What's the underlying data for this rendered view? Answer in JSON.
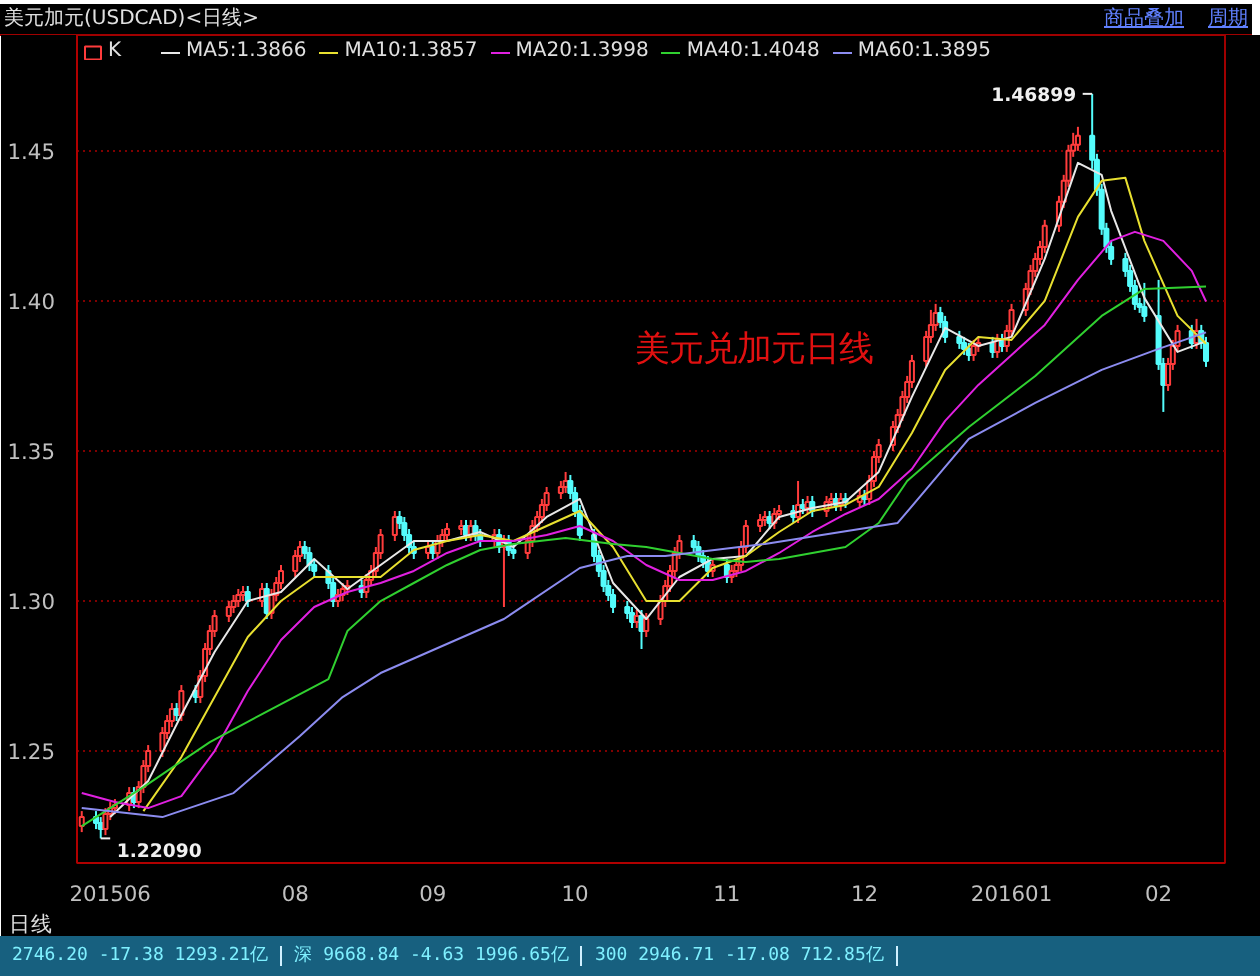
{
  "chart_data": {
    "type": "candlestick",
    "title": "美元加元(USDCAD)<日线>",
    "xlim": [
      "2015-06-18",
      "2016-02-15"
    ],
    "ylim": [
      1.2127,
      1.4886
    ],
    "xticks": [
      {
        "value": "2015-06-25",
        "label": "201506"
      },
      {
        "value": "2015-08-03",
        "label": "08"
      },
      {
        "value": "2015-09-01",
        "label": "09"
      },
      {
        "value": "2015-10-01",
        "label": "10"
      },
      {
        "value": "2015-11-02",
        "label": "11"
      },
      {
        "value": "2015-12-01",
        "label": "12"
      },
      {
        "value": "2016-01-01",
        "label": "201601"
      },
      {
        "value": "2016-02-01",
        "label": "02"
      }
    ],
    "yticks": [
      1.25,
      {
        "value": 1.3,
        "label": "1.30"
      },
      1.35,
      {
        "value": 1.4,
        "label": "1.40"
      },
      1.45
    ],
    "grid": "y",
    "legend": "top left",
    "annotations": [
      "美元兑加元日线",
      {
        "text": "1.46899",
        "x": "2016-01-18",
        "y": 1.46899
      },
      {
        "text": "1.22090",
        "x": "2015-06-23",
        "y": 1.2209
      },
      "商品叠加",
      "周期",
      "日线",
      "2746.20  -17.38  1293.21亿",
      "深  9668.84  -4.63  1996.65亿",
      "300  2946.71  -17.08  712.85亿"
    ],
    "series": [
      {
        "name": "K",
        "type": "candlestick",
        "x": [
          "2015-06-19",
          "2015-06-22",
          "2015-06-23",
          "2015-06-24",
          "2015-06-25",
          "2015-06-26",
          "2015-06-29",
          "2015-06-30",
          "2015-07-01",
          "2015-07-02",
          "2015-07-03",
          "2015-07-06",
          "2015-07-07",
          "2015-07-08",
          "2015-07-09",
          "2015-07-10",
          "2015-07-13",
          "2015-07-14",
          "2015-07-15",
          "2015-07-16",
          "2015-07-17",
          "2015-07-20",
          "2015-07-21",
          "2015-07-22",
          "2015-07-23",
          "2015-07-24",
          "2015-07-27",
          "2015-07-28",
          "2015-07-29",
          "2015-07-30",
          "2015-07-31",
          "2015-08-03",
          "2015-08-04",
          "2015-08-05",
          "2015-08-06",
          "2015-08-07",
          "2015-08-10",
          "2015-08-11",
          "2015-08-12",
          "2015-08-13",
          "2015-08-14",
          "2015-08-17",
          "2015-08-18",
          "2015-08-19",
          "2015-08-20",
          "2015-08-21",
          "2015-08-24",
          "2015-08-25",
          "2015-08-26",
          "2015-08-27",
          "2015-08-28",
          "2015-08-31",
          "2015-09-01",
          "2015-09-02",
          "2015-09-03",
          "2015-09-04",
          "2015-09-07",
          "2015-09-08",
          "2015-09-09",
          "2015-09-10",
          "2015-09-11",
          "2015-09-14",
          "2015-09-15",
          "2015-09-16",
          "2015-09-17",
          "2015-09-18",
          "2015-09-21",
          "2015-09-22",
          "2015-09-23",
          "2015-09-24",
          "2015-09-25",
          "2015-09-28",
          "2015-09-29",
          "2015-09-30",
          "2015-10-01",
          "2015-10-02",
          "2015-10-05",
          "2015-10-06",
          "2015-10-07",
          "2015-10-08",
          "2015-10-09",
          "2015-10-12",
          "2015-10-13",
          "2015-10-14",
          "2015-10-15",
          "2015-10-16",
          "2015-10-19",
          "2015-10-20",
          "2015-10-21",
          "2015-10-22",
          "2015-10-23",
          "2015-10-26",
          "2015-10-27",
          "2015-10-28",
          "2015-10-29",
          "2015-10-30",
          "2015-11-02",
          "2015-11-03",
          "2015-11-04",
          "2015-11-05",
          "2015-11-06",
          "2015-11-09",
          "2015-11-10",
          "2015-11-11",
          "2015-11-12",
          "2015-11-13",
          "2015-11-16",
          "2015-11-17",
          "2015-11-18",
          "2015-11-19",
          "2015-11-20",
          "2015-11-23",
          "2015-11-24",
          "2015-11-25",
          "2015-11-26",
          "2015-11-27",
          "2015-11-30",
          "2015-12-01",
          "2015-12-02",
          "2015-12-03",
          "2015-12-04",
          "2015-12-07",
          "2015-12-08",
          "2015-12-09",
          "2015-12-10",
          "2015-12-11",
          "2015-12-14",
          "2015-12-15",
          "2015-12-16",
          "2015-12-17",
          "2015-12-18",
          "2015-12-21",
          "2015-12-22",
          "2015-12-23",
          "2015-12-24",
          "2015-12-25",
          "2015-12-28",
          "2015-12-29",
          "2015-12-30",
          "2015-12-31",
          "2016-01-01",
          "2016-01-04",
          "2016-01-05",
          "2016-01-06",
          "2016-01-07",
          "2016-01-08",
          "2016-01-11",
          "2016-01-12",
          "2016-01-13",
          "2016-01-14",
          "2016-01-15",
          "2016-01-18",
          "2016-01-19",
          "2016-01-20",
          "2016-01-21",
          "2016-01-22",
          "2016-01-25",
          "2016-01-26",
          "2016-01-27",
          "2016-01-28",
          "2016-01-29",
          "2016-02-01",
          "2016-02-02",
          "2016-02-03",
          "2016-02-04",
          "2016-02-05",
          "2016-02-08",
          "2016-02-09",
          "2016-02-10",
          "2016-02-11"
        ],
        "ohlc": [
          [
            1.225,
            1.23,
            1.223,
            1.228
          ],
          [
            1.228,
            1.23,
            1.224,
            1.226
          ],
          [
            1.226,
            1.228,
            1.2209,
            1.224
          ],
          [
            1.224,
            1.231,
            1.222,
            1.229
          ],
          [
            1.229,
            1.233,
            1.227,
            1.231
          ],
          [
            1.231,
            1.234,
            1.229,
            1.232
          ],
          [
            1.232,
            1.238,
            1.23,
            1.236
          ],
          [
            1.236,
            1.238,
            1.231,
            1.233
          ],
          [
            1.233,
            1.24,
            1.231,
            1.238
          ],
          [
            1.238,
            1.247,
            1.236,
            1.245
          ],
          [
            1.245,
            1.252,
            1.243,
            1.25
          ],
          [
            1.25,
            1.258,
            1.248,
            1.256
          ],
          [
            1.256,
            1.262,
            1.254,
            1.26
          ],
          [
            1.26,
            1.266,
            1.258,
            1.264
          ],
          [
            1.264,
            1.266,
            1.26,
            1.262
          ],
          [
            1.262,
            1.272,
            1.26,
            1.27
          ],
          [
            1.27,
            1.272,
            1.266,
            1.268
          ],
          [
            1.268,
            1.277,
            1.266,
            1.275
          ],
          [
            1.275,
            1.286,
            1.273,
            1.284
          ],
          [
            1.284,
            1.292,
            1.282,
            1.29
          ],
          [
            1.29,
            1.297,
            1.288,
            1.295
          ],
          [
            1.295,
            1.3,
            1.293,
            1.298
          ],
          [
            1.298,
            1.302,
            1.296,
            1.3
          ],
          [
            1.3,
            1.304,
            1.298,
            1.302
          ],
          [
            1.302,
            1.305,
            1.3,
            1.303
          ],
          [
            1.303,
            1.305,
            1.298,
            1.3
          ],
          [
            1.3,
            1.306,
            1.298,
            1.304
          ],
          [
            1.304,
            1.306,
            1.294,
            1.296
          ],
          [
            1.296,
            1.304,
            1.294,
            1.302
          ],
          [
            1.302,
            1.308,
            1.3,
            1.306
          ],
          [
            1.306,
            1.312,
            1.304,
            1.31
          ],
          [
            1.31,
            1.317,
            1.308,
            1.315
          ],
          [
            1.315,
            1.32,
            1.313,
            1.318
          ],
          [
            1.318,
            1.32,
            1.314,
            1.316
          ],
          [
            1.316,
            1.318,
            1.31,
            1.312
          ],
          [
            1.312,
            1.314,
            1.308,
            1.31
          ],
          [
            1.31,
            1.312,
            1.304,
            1.306
          ],
          [
            1.306,
            1.308,
            1.298,
            1.3
          ],
          [
            1.3,
            1.304,
            1.298,
            1.302
          ],
          [
            1.302,
            1.306,
            1.3,
            1.304
          ],
          [
            1.304,
            1.307,
            1.302,
            1.305
          ],
          [
            1.305,
            1.307,
            1.301,
            1.303
          ],
          [
            1.303,
            1.309,
            1.301,
            1.307
          ],
          [
            1.307,
            1.312,
            1.305,
            1.31
          ],
          [
            1.31,
            1.318,
            1.308,
            1.316
          ],
          [
            1.316,
            1.324,
            1.314,
            1.322
          ],
          [
            1.322,
            1.33,
            1.32,
            1.328
          ],
          [
            1.328,
            1.33,
            1.324,
            1.326
          ],
          [
            1.326,
            1.328,
            1.32,
            1.322
          ],
          [
            1.322,
            1.324,
            1.316,
            1.318
          ],
          [
            1.318,
            1.32,
            1.314,
            1.316
          ],
          [
            1.316,
            1.32,
            1.314,
            1.318
          ],
          [
            1.318,
            1.32,
            1.314,
            1.316
          ],
          [
            1.316,
            1.322,
            1.314,
            1.32
          ],
          [
            1.32,
            1.324,
            1.318,
            1.322
          ],
          [
            1.322,
            1.326,
            1.32,
            1.324
          ],
          [
            1.324,
            1.327,
            1.322,
            1.325
          ],
          [
            1.325,
            1.327,
            1.32,
            1.322
          ],
          [
            1.322,
            1.327,
            1.32,
            1.325
          ],
          [
            1.325,
            1.327,
            1.32,
            1.322
          ],
          [
            1.322,
            1.324,
            1.318,
            1.32
          ],
          [
            1.32,
            1.324,
            1.318,
            1.322
          ],
          [
            1.322,
            1.324,
            1.316,
            1.318
          ],
          [
            1.318,
            1.322,
            1.298,
            1.32
          ],
          [
            1.32,
            1.322,
            1.315,
            1.317
          ],
          [
            1.317,
            1.319,
            1.314,
            1.316
          ],
          [
            1.316,
            1.322,
            1.314,
            1.32
          ],
          [
            1.32,
            1.327,
            1.318,
            1.325
          ],
          [
            1.325,
            1.33,
            1.323,
            1.328
          ],
          [
            1.328,
            1.334,
            1.326,
            1.332
          ],
          [
            1.332,
            1.338,
            1.33,
            1.336
          ],
          [
            1.336,
            1.34,
            1.334,
            1.338
          ],
          [
            1.338,
            1.343,
            1.336,
            1.34
          ],
          [
            1.34,
            1.342,
            1.334,
            1.336
          ],
          [
            1.336,
            1.338,
            1.328,
            1.33
          ],
          [
            1.33,
            1.332,
            1.32,
            1.322
          ],
          [
            1.322,
            1.324,
            1.313,
            1.315
          ],
          [
            1.315,
            1.317,
            1.308,
            1.31
          ],
          [
            1.31,
            1.312,
            1.303,
            1.305
          ],
          [
            1.305,
            1.307,
            1.3,
            1.302
          ],
          [
            1.302,
            1.304,
            1.296,
            1.298
          ],
          [
            1.298,
            1.3,
            1.294,
            1.296
          ],
          [
            1.296,
            1.298,
            1.291,
            1.293
          ],
          [
            1.293,
            1.297,
            1.291,
            1.295
          ],
          [
            1.295,
            1.297,
            1.284,
            1.29
          ],
          [
            1.29,
            1.296,
            1.288,
            1.294
          ],
          [
            1.294,
            1.302,
            1.292,
            1.3
          ],
          [
            1.3,
            1.307,
            1.298,
            1.305
          ],
          [
            1.305,
            1.312,
            1.303,
            1.31
          ],
          [
            1.31,
            1.318,
            1.308,
            1.316
          ],
          [
            1.316,
            1.322,
            1.314,
            1.32
          ],
          [
            1.32,
            1.322,
            1.316,
            1.318
          ],
          [
            1.318,
            1.32,
            1.313,
            1.315
          ],
          [
            1.315,
            1.317,
            1.311,
            1.313
          ],
          [
            1.313,
            1.315,
            1.308,
            1.31
          ],
          [
            1.31,
            1.314,
            1.308,
            1.312
          ],
          [
            1.312,
            1.314,
            1.306,
            1.308
          ],
          [
            1.308,
            1.312,
            1.306,
            1.31
          ],
          [
            1.31,
            1.314,
            1.308,
            1.312
          ],
          [
            1.312,
            1.32,
            1.31,
            1.318
          ],
          [
            1.318,
            1.327,
            1.316,
            1.325
          ],
          [
            1.325,
            1.329,
            1.323,
            1.327
          ],
          [
            1.327,
            1.33,
            1.325,
            1.328
          ],
          [
            1.328,
            1.33,
            1.324,
            1.326
          ],
          [
            1.326,
            1.331,
            1.324,
            1.329
          ],
          [
            1.329,
            1.332,
            1.327,
            1.33
          ],
          [
            1.33,
            1.332,
            1.326,
            1.328
          ],
          [
            1.328,
            1.34,
            1.326,
            1.332
          ],
          [
            1.332,
            1.334,
            1.329,
            1.331
          ],
          [
            1.331,
            1.335,
            1.329,
            1.333
          ],
          [
            1.333,
            1.335,
            1.328,
            1.33
          ],
          [
            1.33,
            1.335,
            1.328,
            1.333
          ],
          [
            1.333,
            1.336,
            1.331,
            1.334
          ],
          [
            1.334,
            1.336,
            1.33,
            1.332
          ],
          [
            1.332,
            1.336,
            1.33,
            1.334
          ],
          [
            1.334,
            1.336,
            1.331,
            1.333
          ],
          [
            1.333,
            1.337,
            1.331,
            1.335
          ],
          [
            1.335,
            1.337,
            1.332,
            1.334
          ],
          [
            1.334,
            1.342,
            1.332,
            1.34
          ],
          [
            1.34,
            1.35,
            1.338,
            1.348
          ],
          [
            1.348,
            1.354,
            1.346,
            1.352
          ],
          [
            1.352,
            1.36,
            1.35,
            1.358
          ],
          [
            1.358,
            1.364,
            1.356,
            1.362
          ],
          [
            1.362,
            1.37,
            1.36,
            1.368
          ],
          [
            1.368,
            1.375,
            1.366,
            1.373
          ],
          [
            1.373,
            1.382,
            1.371,
            1.38
          ],
          [
            1.38,
            1.39,
            1.378,
            1.388
          ],
          [
            1.388,
            1.397,
            1.386,
            1.392
          ],
          [
            1.392,
            1.399,
            1.39,
            1.396
          ],
          [
            1.396,
            1.398,
            1.391,
            1.393
          ],
          [
            1.393,
            1.395,
            1.386,
            1.388
          ],
          [
            1.388,
            1.39,
            1.384,
            1.386
          ],
          [
            1.386,
            1.388,
            1.382,
            1.384
          ],
          [
            1.384,
            1.386,
            1.38,
            1.382
          ],
          [
            1.382,
            1.387,
            1.38,
            1.385
          ],
          [
            1.385,
            1.388,
            1.383,
            1.386
          ],
          [
            1.386,
            1.388,
            1.381,
            1.383
          ],
          [
            1.383,
            1.389,
            1.381,
            1.387
          ],
          [
            1.387,
            1.389,
            1.383,
            1.385
          ],
          [
            1.385,
            1.392,
            1.383,
            1.39
          ],
          [
            1.39,
            1.399,
            1.388,
            1.397
          ],
          [
            1.397,
            1.406,
            1.395,
            1.404
          ],
          [
            1.404,
            1.412,
            1.402,
            1.41
          ],
          [
            1.41,
            1.416,
            1.408,
            1.414
          ],
          [
            1.414,
            1.42,
            1.412,
            1.418
          ],
          [
            1.418,
            1.427,
            1.416,
            1.425
          ],
          [
            1.425,
            1.435,
            1.423,
            1.433
          ],
          [
            1.433,
            1.442,
            1.431,
            1.44
          ],
          [
            1.44,
            1.452,
            1.438,
            1.45
          ],
          [
            1.45,
            1.456,
            1.448,
            1.452
          ],
          [
            1.452,
            1.458,
            1.45,
            1.455
          ],
          [
            1.455,
            1.46899,
            1.444,
            1.447
          ],
          [
            1.447,
            1.449,
            1.435,
            1.437
          ],
          [
            1.437,
            1.439,
            1.422,
            1.424
          ],
          [
            1.424,
            1.426,
            1.416,
            1.418
          ],
          [
            1.418,
            1.42,
            1.412,
            1.414
          ],
          [
            1.414,
            1.416,
            1.408,
            1.41
          ],
          [
            1.41,
            1.412,
            1.403,
            1.405
          ],
          [
            1.405,
            1.407,
            1.397,
            1.399
          ],
          [
            1.399,
            1.401,
            1.396,
            1.398
          ],
          [
            1.398,
            1.406,
            1.393,
            1.395
          ],
          [
            1.395,
            1.407,
            1.377,
            1.379
          ],
          [
            1.379,
            1.381,
            1.363,
            1.372
          ],
          [
            1.372,
            1.381,
            1.37,
            1.379
          ],
          [
            1.379,
            1.387,
            1.377,
            1.385
          ],
          [
            1.385,
            1.392,
            1.383,
            1.39
          ],
          [
            1.39,
            1.392,
            1.384,
            1.386
          ],
          [
            1.386,
            1.394,
            1.384,
            1.39
          ],
          [
            1.39,
            1.392,
            1.384,
            1.386
          ],
          [
            1.386,
            1.388,
            1.378,
            1.38
          ]
        ]
      },
      {
        "name": "MA5:1.3866",
        "type": "line",
        "color": "#e8e8e8",
        "x": [
          "2015-06-25",
          "2015-07-03",
          "2015-07-10",
          "2015-07-17",
          "2015-07-24",
          "2015-07-31",
          "2015-08-07",
          "2015-08-14",
          "2015-08-21",
          "2015-08-28",
          "2015-09-04",
          "2015-09-11",
          "2015-09-18",
          "2015-09-25",
          "2015-10-02",
          "2015-10-09",
          "2015-10-16",
          "2015-10-23",
          "2015-10-30",
          "2015-11-06",
          "2015-11-13",
          "2015-11-20",
          "2015-11-27",
          "2015-12-04",
          "2015-12-11",
          "2015-12-18",
          "2015-12-25",
          "2016-01-01",
          "2016-01-08",
          "2016-01-15",
          "2016-01-20",
          "2016-01-22",
          "2016-01-29",
          "2016-02-05",
          "2016-02-11"
        ],
        "values": [
          1.228,
          1.24,
          1.262,
          1.283,
          1.3,
          1.303,
          1.314,
          1.304,
          1.312,
          1.32,
          1.32,
          1.323,
          1.318,
          1.328,
          1.334,
          1.306,
          1.294,
          1.308,
          1.314,
          1.315,
          1.328,
          1.331,
          1.333,
          1.343,
          1.368,
          1.391,
          1.385,
          1.388,
          1.414,
          1.446,
          1.442,
          1.43,
          1.401,
          1.383,
          1.3866
        ]
      },
      {
        "name": "MA10:1.3857",
        "type": "line",
        "color": "#e8e030",
        "x": [
          "2015-07-02",
          "2015-07-10",
          "2015-07-17",
          "2015-07-24",
          "2015-07-31",
          "2015-08-07",
          "2015-08-14",
          "2015-08-21",
          "2015-08-28",
          "2015-09-04",
          "2015-09-11",
          "2015-09-18",
          "2015-09-25",
          "2015-10-02",
          "2015-10-09",
          "2015-10-16",
          "2015-10-23",
          "2015-10-30",
          "2015-11-06",
          "2015-11-13",
          "2015-11-20",
          "2015-11-27",
          "2015-12-04",
          "2015-12-11",
          "2015-12-18",
          "2015-12-25",
          "2016-01-01",
          "2016-01-08",
          "2016-01-15",
          "2016-01-20",
          "2016-01-25",
          "2016-01-29",
          "2016-02-05",
          "2016-02-11"
        ],
        "values": [
          1.23,
          1.248,
          1.268,
          1.288,
          1.3,
          1.308,
          1.308,
          1.308,
          1.317,
          1.32,
          1.322,
          1.32,
          1.325,
          1.33,
          1.318,
          1.3,
          1.3,
          1.311,
          1.315,
          1.323,
          1.33,
          1.332,
          1.338,
          1.356,
          1.377,
          1.388,
          1.387,
          1.4,
          1.428,
          1.44,
          1.441,
          1.42,
          1.395,
          1.3857
        ]
      },
      {
        "name": "MA20:1.3998",
        "type": "line",
        "color": "#e020e0",
        "x": [
          "2015-06-19",
          "2015-06-26",
          "2015-07-03",
          "2015-07-10",
          "2015-07-17",
          "2015-07-24",
          "2015-07-31",
          "2015-08-07",
          "2015-08-14",
          "2015-08-21",
          "2015-08-28",
          "2015-09-04",
          "2015-09-11",
          "2015-09-18",
          "2015-09-25",
          "2015-10-02",
          "2015-10-09",
          "2015-10-16",
          "2015-10-23",
          "2015-10-30",
          "2015-11-06",
          "2015-11-13",
          "2015-11-20",
          "2015-11-27",
          "2015-12-04",
          "2015-12-11",
          "2015-12-18",
          "2015-12-25",
          "2016-01-01",
          "2016-01-08",
          "2016-01-15",
          "2016-01-22",
          "2016-01-27",
          "2016-02-02",
          "2016-02-08",
          "2016-02-11"
        ],
        "values": [
          1.236,
          1.233,
          1.231,
          1.235,
          1.25,
          1.27,
          1.287,
          1.298,
          1.303,
          1.306,
          1.31,
          1.316,
          1.32,
          1.32,
          1.322,
          1.325,
          1.32,
          1.312,
          1.307,
          1.307,
          1.31,
          1.316,
          1.323,
          1.329,
          1.334,
          1.344,
          1.36,
          1.372,
          1.382,
          1.392,
          1.407,
          1.42,
          1.423,
          1.42,
          1.41,
          1.3998
        ]
      },
      {
        "name": "MA40:1.4048",
        "type": "line",
        "color": "#30d030",
        "x": [
          "2015-06-19",
          "2015-07-02",
          "2015-07-16",
          "2015-07-29",
          "2015-08-10",
          "2015-08-14",
          "2015-08-21",
          "2015-08-28",
          "2015-09-04",
          "2015-09-11",
          "2015-09-18",
          "2015-09-29",
          "2015-10-09",
          "2015-10-16",
          "2015-10-23",
          "2015-10-30",
          "2015-11-06",
          "2015-11-13",
          "2015-11-20",
          "2015-11-27",
          "2015-12-04",
          "2015-12-10",
          "2015-12-23",
          "2016-01-06",
          "2016-01-20",
          "2016-01-29",
          "2016-02-11"
        ],
        "values": [
          1.225,
          1.238,
          1.253,
          1.264,
          1.274,
          1.29,
          1.3,
          1.306,
          1.312,
          1.317,
          1.319,
          1.321,
          1.319,
          1.318,
          1.316,
          1.314,
          1.313,
          1.314,
          1.316,
          1.318,
          1.326,
          1.34,
          1.358,
          1.375,
          1.395,
          1.404,
          1.4048
        ]
      },
      {
        "name": "MA60:1.3895",
        "type": "line",
        "color": "#8c8cf0",
        "x": [
          "2015-06-19",
          "2015-07-06",
          "2015-07-21",
          "2015-08-04",
          "2015-08-13",
          "2015-08-21",
          "2015-09-16",
          "2015-10-02",
          "2015-10-12",
          "2015-10-20",
          "2015-11-10",
          "2015-12-08",
          "2015-12-23",
          "2016-01-06",
          "2016-01-20",
          "2016-02-01",
          "2016-02-11"
        ],
        "values": [
          1.231,
          1.228,
          1.236,
          1.255,
          1.268,
          1.276,
          1.294,
          1.311,
          1.315,
          1.315,
          1.319,
          1.326,
          1.354,
          1.366,
          1.377,
          1.384,
          1.3895
        ]
      }
    ]
  }
}
